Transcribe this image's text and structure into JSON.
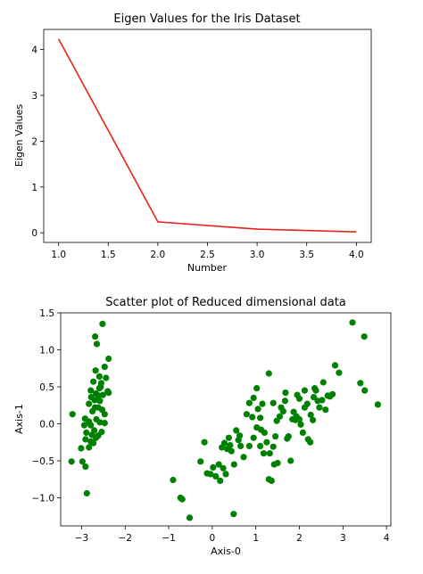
{
  "chart_data": [
    {
      "type": "line",
      "title": "Eigen Values for the Iris Dataset",
      "xlabel": "Number",
      "ylabel": "Eigen Values",
      "xlim": [
        0.85,
        4.15
      ],
      "ylim": [
        -0.21,
        4.44
      ],
      "xticks": [
        1.0,
        1.5,
        2.0,
        2.5,
        3.0,
        3.5,
        4.0
      ],
      "xtick_labels": [
        "1.0",
        "1.5",
        "2.0",
        "2.5",
        "3.0",
        "3.5",
        "4.0"
      ],
      "yticks": [
        0,
        1,
        2,
        3,
        4
      ],
      "ytick_labels": [
        "0",
        "1",
        "2",
        "3",
        "4"
      ],
      "line_color": "#e8221c",
      "series": [
        {
          "x": [
            1,
            2,
            3,
            4
          ],
          "y": [
            4.23,
            0.24,
            0.08,
            0.02
          ]
        }
      ]
    },
    {
      "type": "scatter",
      "title": "Scatter plot of Reduced dimensional data",
      "xlabel": "Axis-0",
      "ylabel": "Axis-1",
      "xlim": [
        -3.48,
        4.1
      ],
      "ylim": [
        -1.38,
        1.5
      ],
      "xticks": [
        -3,
        -2,
        -1,
        0,
        1,
        2,
        3,
        4
      ],
      "xtick_labels": [
        "−3",
        "−2",
        "−1",
        "0",
        "1",
        "2",
        "3",
        "4"
      ],
      "yticks": [
        1.5,
        1.0,
        0.5,
        0.0,
        -0.5,
        -1.0
      ],
      "ytick_labels": [
        "1.5",
        "1.0",
        "0.5",
        "0.0",
        "−0.5",
        "−1.0"
      ],
      "marker_color": "#008000",
      "points": [
        [
          -2.69,
          1.18
        ],
        [
          -2.52,
          1.35
        ],
        [
          -2.65,
          1.08
        ],
        [
          -2.38,
          0.88
        ],
        [
          -2.47,
          0.77
        ],
        [
          -2.68,
          0.72
        ],
        [
          -2.73,
          0.57
        ],
        [
          -2.59,
          0.64
        ],
        [
          -2.44,
          0.62
        ],
        [
          -2.55,
          0.55
        ],
        [
          -2.79,
          0.45
        ],
        [
          -2.67,
          0.41
        ],
        [
          -2.61,
          0.38
        ],
        [
          -2.51,
          0.39
        ],
        [
          -2.38,
          0.42
        ],
        [
          -2.7,
          0.32
        ],
        [
          -2.58,
          0.31
        ],
        [
          -2.83,
          0.27
        ],
        [
          -2.62,
          0.22
        ],
        [
          -2.53,
          0.19
        ],
        [
          -2.75,
          0.17
        ],
        [
          -2.47,
          0.13
        ],
        [
          -2.92,
          0.07
        ],
        [
          -2.83,
          0.03
        ],
        [
          -2.66,
          0.06
        ],
        [
          -2.58,
          0.02
        ],
        [
          -2.47,
          0.01
        ],
        [
          -2.79,
          -0.02
        ],
        [
          -2.94,
          -0.02
        ],
        [
          -2.71,
          -0.09
        ],
        [
          -2.89,
          -0.12
        ],
        [
          -2.76,
          -0.15
        ],
        [
          -2.62,
          -0.16
        ],
        [
          -2.54,
          -0.11
        ],
        [
          -2.91,
          -0.21
        ],
        [
          -2.79,
          -0.24
        ],
        [
          -2.67,
          -0.19
        ],
        [
          -3.21,
          0.13
        ],
        [
          -3.01,
          -0.33
        ],
        [
          -2.83,
          -0.32
        ],
        [
          -2.73,
          -0.26
        ],
        [
          -2.98,
          -0.51
        ],
        [
          -3.23,
          -0.51
        ],
        [
          -2.91,
          -0.58
        ],
        [
          -2.88,
          -0.94
        ],
        [
          -2.4,
          0.44
        ],
        [
          -2.78,
          0.36
        ],
        [
          -2.59,
          0.48
        ],
        [
          -2.56,
          0.5
        ],
        [
          -2.69,
          0.22
        ],
        [
          -0.9,
          -0.76
        ],
        [
          -0.73,
          -1.0
        ],
        [
          -0.69,
          -1.02
        ],
        [
          -0.52,
          -1.27
        ],
        [
          0.49,
          -1.22
        ],
        [
          -0.27,
          -0.51
        ],
        [
          -0.18,
          -0.25
        ],
        [
          -0.12,
          -0.67
        ],
        [
          -0.04,
          -0.68
        ],
        [
          0.08,
          -0.71
        ],
        [
          0.18,
          -0.77
        ],
        [
          0.25,
          -0.6
        ],
        [
          0.31,
          -0.68
        ],
        [
          0.15,
          -0.55
        ],
        [
          0.02,
          -0.59
        ],
        [
          0.22,
          -0.32
        ],
        [
          0.34,
          -0.34
        ],
        [
          0.41,
          -0.29
        ],
        [
          0.28,
          -0.26
        ],
        [
          0.38,
          -0.19
        ],
        [
          0.44,
          -0.37
        ],
        [
          0.5,
          -0.55
        ],
        [
          0.55,
          -0.09
        ],
        [
          0.63,
          -0.16
        ],
        [
          0.65,
          -0.3
        ],
        [
          0.72,
          -0.45
        ],
        [
          0.79,
          0.13
        ],
        [
          0.85,
          0.28
        ],
        [
          0.92,
          0.09
        ],
        [
          0.95,
          0.35
        ],
        [
          1.02,
          0.48
        ],
        [
          1.05,
          0.2
        ],
        [
          1.1,
          0.08
        ],
        [
          1.15,
          0.27
        ],
        [
          1.12,
          -0.08
        ],
        [
          1.2,
          -0.12
        ],
        [
          1.25,
          -0.25
        ],
        [
          1.32,
          -0.4
        ],
        [
          1.3,
          -0.75
        ],
        [
          1.36,
          -0.77
        ],
        [
          1.42,
          -0.55
        ],
        [
          1.5,
          -0.53
        ],
        [
          0.85,
          -0.3
        ],
        [
          0.95,
          -0.19
        ],
        [
          1.02,
          -0.05
        ],
        [
          1.1,
          -0.3
        ],
        [
          1.18,
          -0.4
        ],
        [
          1.4,
          -0.31
        ],
        [
          1.45,
          -0.17
        ],
        [
          1.48,
          0.04
        ],
        [
          1.55,
          0.1
        ],
        [
          1.58,
          0.22
        ],
        [
          1.63,
          0.17
        ],
        [
          1.67,
          0.31
        ],
        [
          1.72,
          -0.2
        ],
        [
          1.75,
          -0.17
        ],
        [
          1.8,
          -0.5
        ],
        [
          1.84,
          0.06
        ],
        [
          1.87,
          0.16
        ],
        [
          1.91,
          0.05
        ],
        [
          1.95,
          0.39
        ],
        [
          2.0,
          0.34
        ],
        [
          2.03,
          -0.01
        ],
        [
          2.08,
          -0.12
        ],
        [
          2.12,
          0.22
        ],
        [
          2.18,
          0.27
        ],
        [
          2.2,
          -0.21
        ],
        [
          2.26,
          0.12
        ],
        [
          2.31,
          0.05
        ],
        [
          2.33,
          0.36
        ],
        [
          2.38,
          0.45
        ],
        [
          2.42,
          0.31
        ],
        [
          2.46,
          0.22
        ],
        [
          2.52,
          0.32
        ],
        [
          2.55,
          0.56
        ],
        [
          2.6,
          0.19
        ],
        [
          2.65,
          0.38
        ],
        [
          2.7,
          0.37
        ],
        [
          2.76,
          0.4
        ],
        [
          2.82,
          0.79
        ],
        [
          2.91,
          0.69
        ],
        [
          3.22,
          1.37
        ],
        [
          3.49,
          1.18
        ],
        [
          3.4,
          0.55
        ],
        [
          3.5,
          0.45
        ],
        [
          3.8,
          0.26
        ],
        [
          2.35,
          0.48
        ],
        [
          1.3,
          0.68
        ],
        [
          1.68,
          0.42
        ],
        [
          1.93,
          0.1
        ],
        [
          2.0,
          0.06
        ],
        [
          2.25,
          -0.25
        ],
        [
          2.12,
          0.45
        ],
        [
          1.4,
          0.28
        ],
        [
          0.6,
          -0.22
        ]
      ]
    }
  ]
}
